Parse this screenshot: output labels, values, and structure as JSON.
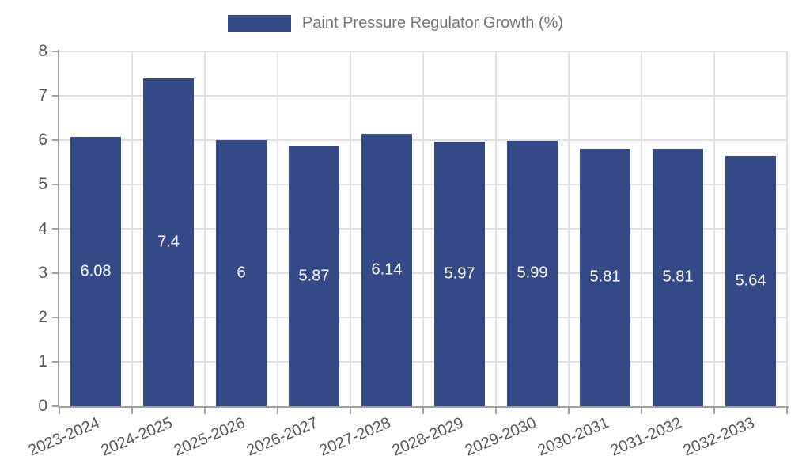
{
  "legend": {
    "label": "Paint Pressure Regulator Growth (%)"
  },
  "chart_data": {
    "type": "bar",
    "title": "",
    "xlabel": "",
    "ylabel": "",
    "categories": [
      "2023-2024",
      "2024-2025",
      "2025-2026",
      "2026-2027",
      "2027-2028",
      "2028-2029",
      "2029-2030",
      "2030-2031",
      "2031-2032",
      "2032-2033"
    ],
    "values": [
      6.08,
      7.4,
      6,
      5.87,
      6.14,
      5.97,
      5.99,
      5.81,
      5.81,
      5.64
    ],
    "value_labels": [
      "6.08",
      "7.4",
      "6",
      "5.87",
      "6.14",
      "5.97",
      "5.99",
      "5.81",
      "5.81",
      "5.64"
    ],
    "series_name": "Paint Pressure Regulator Growth (%)",
    "ylim": [
      0,
      8
    ],
    "yticks": [
      0,
      1,
      2,
      3,
      4,
      5,
      6,
      7,
      8
    ],
    "grid": true,
    "legend_position": "top-center",
    "value_label_position": "inside-center"
  },
  "colors": {
    "bar": "#344A87",
    "grid": "#E0E0E0",
    "axis": "#A0A0A0",
    "tick_label": "#565656",
    "legend_text": "#757575",
    "value_label": "#FFFFFF",
    "background": "#FFFFFF"
  }
}
